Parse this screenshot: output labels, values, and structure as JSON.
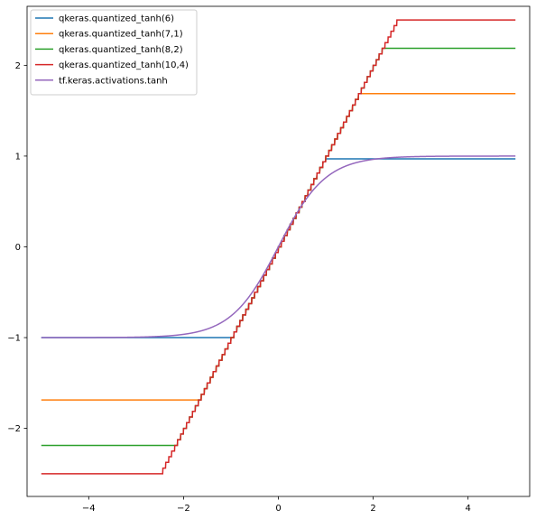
{
  "chart_data": {
    "type": "line",
    "title": "",
    "xlabel": "",
    "ylabel": "",
    "xlim": [
      -5.3,
      5.3
    ],
    "ylim": [
      -2.75,
      2.65
    ],
    "grid": false,
    "legend_position": "top-left",
    "x_ticks": [
      -4,
      -2,
      0,
      2,
      4
    ],
    "x_tick_labels": [
      "−4",
      "−2",
      "0",
      "2",
      "4"
    ],
    "y_ticks": [
      -2,
      -1,
      0,
      1,
      2
    ],
    "y_tick_labels": [
      "−2",
      "−1",
      "0",
      "1",
      "2"
    ],
    "x_range": [
      -5,
      5
    ],
    "series": [
      {
        "name": "qkeras.quantized_tanh(6)",
        "kind": "quantized",
        "color": "#1f77b4",
        "bits": 6,
        "integer": 0,
        "step": 0.0625,
        "clip_min": -1.0,
        "clip_max": 0.96875
      },
      {
        "name": "qkeras.quantized_tanh(7,1)",
        "kind": "quantized",
        "color": "#ff7f0e",
        "bits": 7,
        "integer": 1,
        "step": 0.0625,
        "clip_min": -1.6875,
        "clip_max": 1.6875
      },
      {
        "name": "qkeras.quantized_tanh(8,2)",
        "kind": "quantized",
        "color": "#2ca02c",
        "bits": 8,
        "integer": 2,
        "step": 0.0625,
        "clip_min": -2.1875,
        "clip_max": 2.1875
      },
      {
        "name": "qkeras.quantized_tanh(10,4)",
        "kind": "quantized",
        "color": "#d62728",
        "bits": 10,
        "integer": 4,
        "step": 0.0625,
        "clip_min": -2.5,
        "clip_max": 2.5
      },
      {
        "name": "tf.keras.activations.tanh",
        "kind": "tanh",
        "color": "#9467bd"
      }
    ]
  }
}
